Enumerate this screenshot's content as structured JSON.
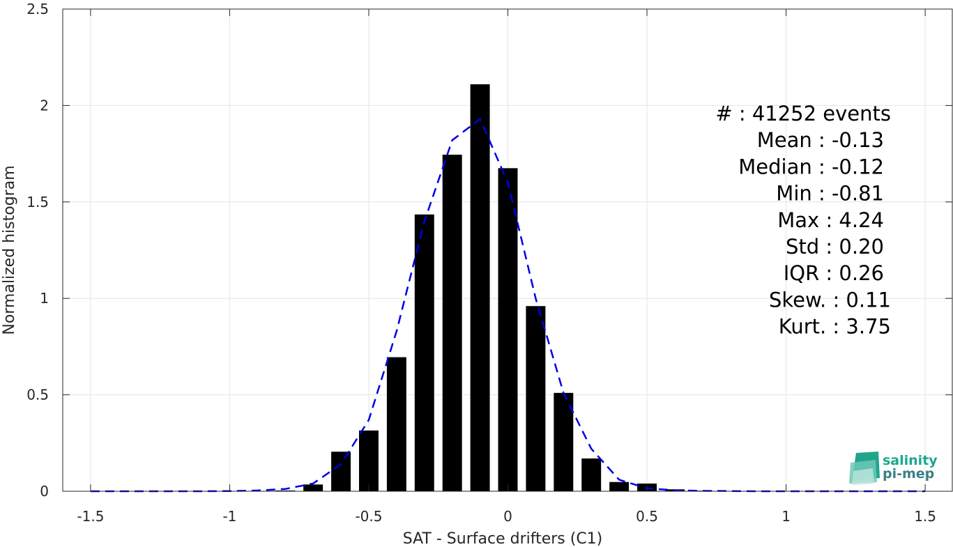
{
  "chart_data": {
    "type": "bar",
    "title": "",
    "xlabel": "SAT - Surface drifters (C1)",
    "ylabel": "Normalized histogram",
    "xlim": [
      -1.6,
      1.6
    ],
    "ylim": [
      0,
      2.5
    ],
    "grid": true,
    "xticks": [
      -1.5,
      -1,
      -0.5,
      0,
      0.5,
      1,
      1.5
    ],
    "xtick_labels": [
      "-1.5",
      "-1",
      "-0.5",
      "0",
      "0.5",
      "1",
      "1.5"
    ],
    "yticks": [
      0,
      0.5,
      1,
      1.5,
      2,
      2.5
    ],
    "ytick_labels": [
      "0",
      "0.5",
      "1",
      "1.5",
      "2",
      "2.5"
    ],
    "bar_width": 0.07,
    "bars": {
      "x": [
        -0.8,
        -0.7,
        -0.6,
        -0.5,
        -0.4,
        -0.3,
        -0.2,
        -0.1,
        0.0,
        0.1,
        0.2,
        0.3,
        0.4,
        0.5,
        0.6,
        0.7
      ],
      "values": [
        0.004,
        0.035,
        0.205,
        0.315,
        0.695,
        1.435,
        1.745,
        2.11,
        1.675,
        0.96,
        0.51,
        0.17,
        0.048,
        0.04,
        0.01,
        0.003
      ],
      "color": "#000000"
    },
    "fit_curve": {
      "style": "dashed",
      "color": "#0000e6",
      "x": [
        -1.5,
        -1.4,
        -1.3,
        -1.2,
        -1.1,
        -1.0,
        -0.9,
        -0.8,
        -0.7,
        -0.6,
        -0.5,
        -0.4,
        -0.3,
        -0.2,
        -0.1,
        0.0,
        0.1,
        0.2,
        0.3,
        0.4,
        0.5,
        0.6,
        0.7,
        0.8,
        0.9,
        1.0,
        1.1,
        1.2,
        1.3,
        1.4,
        1.5
      ],
      "y": [
        0,
        0,
        0,
        0,
        0,
        0.001,
        0.004,
        0.012,
        0.04,
        0.14,
        0.37,
        0.83,
        1.4,
        1.82,
        1.93,
        1.6,
        1.0,
        0.51,
        0.22,
        0.06,
        0.015,
        0.005,
        0.002,
        0.001,
        0,
        0,
        0,
        0,
        0,
        0,
        0
      ]
    }
  },
  "stats": [
    {
      "label": "#  : 41252 events"
    },
    {
      "label": "Mean : -0.13"
    },
    {
      "label": "Median : -0.12"
    },
    {
      "label": "Min : -0.81"
    },
    {
      "label": "Max : 4.24"
    },
    {
      "label": "Std : 0.20"
    },
    {
      "label": "IQR : 0.26"
    },
    {
      "label": "Skew. : 0.11"
    },
    {
      "label": "Kurt. : 3.75"
    }
  ],
  "logo": {
    "line1": "salinity",
    "line2": "pi-mep",
    "color1": "#1aa88f",
    "color2": "#3c7f86"
  }
}
